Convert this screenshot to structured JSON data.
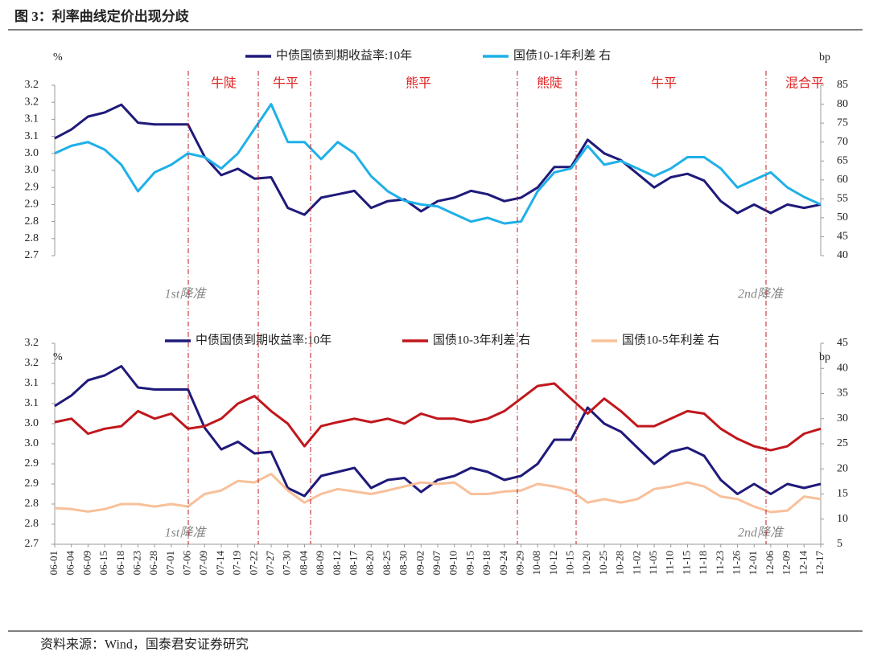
{
  "title": "图 3：利率曲线定价出现分歧",
  "source": "资料来源：Wind，国泰君安证券研究",
  "chart_data": [
    {
      "type": "line",
      "y_unit": "%",
      "y2_unit": "bp",
      "regimes": [
        "牛陡",
        "牛平",
        "熊平",
        "熊陡",
        "牛平",
        "混合平"
      ],
      "notes": [
        "1st降准",
        "2nd降准"
      ],
      "ylim": [
        2.7,
        3.2
      ],
      "yticks": [
        2.7,
        {
          "value": 2.75,
          "label": "2.8"
        },
        2.8,
        {
          "value": 2.85,
          "label": "2.9"
        },
        2.9,
        {
          "value": 2.95,
          "label": "3.0"
        },
        {
          "value": 3.0,
          "label": "3.0"
        },
        {
          "value": 3.05,
          "label": "3.1"
        },
        3.1,
        {
          "value": 3.15,
          "label": "3.2"
        },
        3.2
      ],
      "y2lim": [
        40,
        85
      ],
      "y2ticks": [
        40,
        45,
        50,
        55,
        60,
        65,
        70,
        75,
        80,
        85
      ],
      "series": [
        {
          "name": "中债国债到期收益率:10年",
          "color": "#1f1a7a",
          "values": [
            3.044,
            3.07,
            3.108,
            3.12,
            3.143,
            3.09,
            3.085,
            3.085,
            3.085,
            2.99,
            2.936,
            2.955,
            2.926,
            2.93,
            2.84,
            2.82,
            2.87,
            2.88,
            2.89,
            2.84,
            2.86,
            2.865,
            2.83,
            2.86,
            2.87,
            2.89,
            2.88,
            2.86,
            2.87,
            2.9,
            2.96,
            2.96,
            3.04,
            3.0,
            2.98,
            2.94,
            2.9,
            2.93,
            2.94,
            2.92,
            2.86,
            2.825,
            2.85,
            2.825,
            2.85,
            2.84,
            2.85
          ]
        },
        {
          "name": "国债10-1年利差 右",
          "color": "#1fb0e8",
          "axis": "y2",
          "values": [
            67,
            69,
            70,
            68,
            64,
            57,
            62,
            64,
            67,
            66,
            63,
            67,
            73.5,
            80,
            70,
            70,
            65.5,
            70,
            67,
            61,
            57,
            54.5,
            53.5,
            53,
            51,
            49,
            50,
            48.5,
            49,
            57,
            62,
            63,
            69,
            64,
            65,
            63,
            61,
            63,
            66,
            66,
            63,
            58,
            60,
            62,
            58,
            55.5,
            53.5
          ]
        }
      ]
    },
    {
      "type": "line",
      "y_unit": "%",
      "y2_unit": "bp",
      "notes": [
        "1st降准",
        "2nd降准"
      ],
      "categories": [
        "06-01",
        "06-04",
        "06-09",
        "06-15",
        "06-18",
        "06-23",
        "06-28",
        "07-01",
        "07-06",
        "07-09",
        "07-14",
        "07-19",
        "07-22",
        "07-27",
        "07-30",
        "08-04",
        "08-09",
        "08-12",
        "08-17",
        "08-20",
        "08-25",
        "08-30",
        "09-02",
        "09-07",
        "09-10",
        "09-15",
        "09-18",
        "09-24",
        "09-29",
        "10-08",
        "10-12",
        "10-15",
        "10-20",
        "10-25",
        "10-28",
        "11-02",
        "11-05",
        "11-10",
        "11-15",
        "11-18",
        "11-23",
        "11-26",
        "12-01",
        "12-06",
        "12-09",
        "12-14",
        "12-17"
      ],
      "ylim": [
        2.7,
        3.2
      ],
      "yticks": [
        2.7,
        {
          "value": 2.75,
          "label": "2.8"
        },
        2.8,
        {
          "value": 2.85,
          "label": "2.9"
        },
        2.9,
        {
          "value": 2.95,
          "label": "3.0"
        },
        {
          "value": 3.0,
          "label": "3.0"
        },
        {
          "value": 3.05,
          "label": "3.1"
        },
        3.1,
        {
          "value": 3.15,
          "label": "3.2"
        },
        3.2
      ],
      "y2lim": [
        5,
        45
      ],
      "y2ticks": [
        5,
        10,
        15,
        20,
        25,
        30,
        35,
        40,
        45
      ],
      "series": [
        {
          "name": "中债国债到期收益率:10年",
          "color": "#1f1a7a",
          "values": [
            3.044,
            3.07,
            3.108,
            3.12,
            3.143,
            3.09,
            3.085,
            3.085,
            3.085,
            2.99,
            2.936,
            2.955,
            2.926,
            2.93,
            2.84,
            2.82,
            2.87,
            2.88,
            2.89,
            2.84,
            2.86,
            2.865,
            2.83,
            2.86,
            2.87,
            2.89,
            2.88,
            2.86,
            2.87,
            2.9,
            2.96,
            2.96,
            3.04,
            3.0,
            2.98,
            2.94,
            2.9,
            2.93,
            2.94,
            2.92,
            2.86,
            2.825,
            2.85,
            2.825,
            2.85,
            2.84,
            2.85
          ]
        },
        {
          "name": "国债10-3年利差 右",
          "color": "#c0171d",
          "axis": "y2",
          "values": [
            29.3,
            30,
            27,
            28,
            28.5,
            31.5,
            30,
            31,
            28,
            28.5,
            30,
            33,
            34.5,
            31.5,
            29,
            24.5,
            28.5,
            29.3,
            30,
            29.3,
            30,
            29,
            31,
            30,
            30,
            29.3,
            30,
            31.5,
            34,
            36.5,
            37,
            34,
            31,
            34,
            31.5,
            28.5,
            28.5,
            30,
            31.5,
            31,
            28,
            26,
            24.5,
            23.7,
            24.5,
            27,
            28
          ]
        },
        {
          "name": "国债10-5年利差 右",
          "color": "#f8c09a",
          "axis": "y2",
          "values": [
            12.2,
            12,
            11.5,
            12,
            13,
            13,
            12.5,
            13,
            12.5,
            15,
            15.7,
            17.6,
            17.3,
            19,
            15.7,
            13.3,
            15,
            16,
            15.5,
            15,
            15.7,
            16.5,
            17.3,
            17,
            17.3,
            15,
            15,
            15.5,
            15.7,
            17,
            16.5,
            15.7,
            13.3,
            14,
            13.3,
            14,
            16,
            16.5,
            17.3,
            16.5,
            14.5,
            14,
            12.5,
            11.4,
            11.7,
            14.5,
            14
          ]
        }
      ]
    }
  ]
}
